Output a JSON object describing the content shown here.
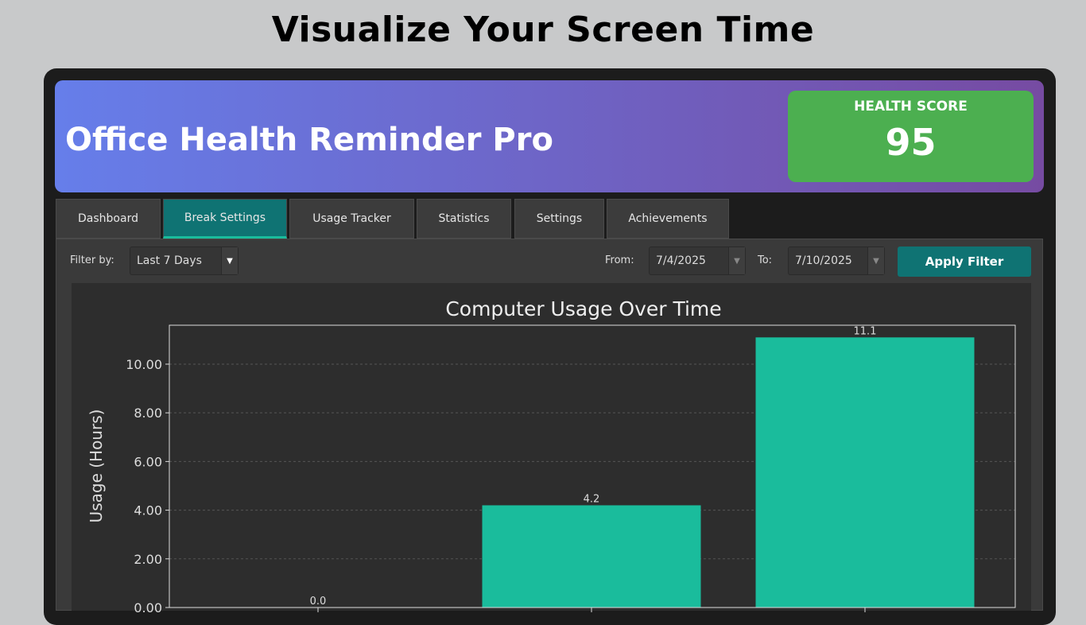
{
  "page_title": "Visualize Your Screen Time",
  "app": {
    "title": "Office Health Reminder Pro",
    "health_score_label": "HEALTH SCORE",
    "health_score": "95"
  },
  "tabs": [
    {
      "label": "Dashboard"
    },
    {
      "label": "Break Settings",
      "active": true
    },
    {
      "label": "Usage Tracker"
    },
    {
      "label": "Statistics"
    },
    {
      "label": "Settings"
    },
    {
      "label": "Achievements"
    }
  ],
  "filter": {
    "filter_by_label": "Filter by:",
    "filter_by_value": "Last 7 Days",
    "from_label": "From:",
    "from_value": "7/4/2025",
    "to_label": "To:",
    "to_value": "7/10/2025",
    "apply_label": "Apply Filter",
    "dropdown_icon": "triangle-down"
  },
  "colors": {
    "header_start": "#667eea",
    "header_end": "#764ba2",
    "score_bg": "#4caf50",
    "accent": "#0f7373",
    "bar": "#1abc9c"
  },
  "chart_data": {
    "type": "bar",
    "title": "Computer Usage Over Time",
    "ylabel": "Usage (Hours)",
    "xlabel": "",
    "categories": [
      "",
      "",
      ""
    ],
    "values": [
      0.0,
      4.2,
      11.1
    ],
    "data_labels": [
      "0.0",
      "4.2",
      "11.1"
    ],
    "ylim": [
      0,
      11.6
    ],
    "yticks": [
      "0.00",
      "2.00",
      "4.00",
      "6.00",
      "8.00",
      "10.00"
    ],
    "grid": "horizontal dashed",
    "legend": "none"
  }
}
